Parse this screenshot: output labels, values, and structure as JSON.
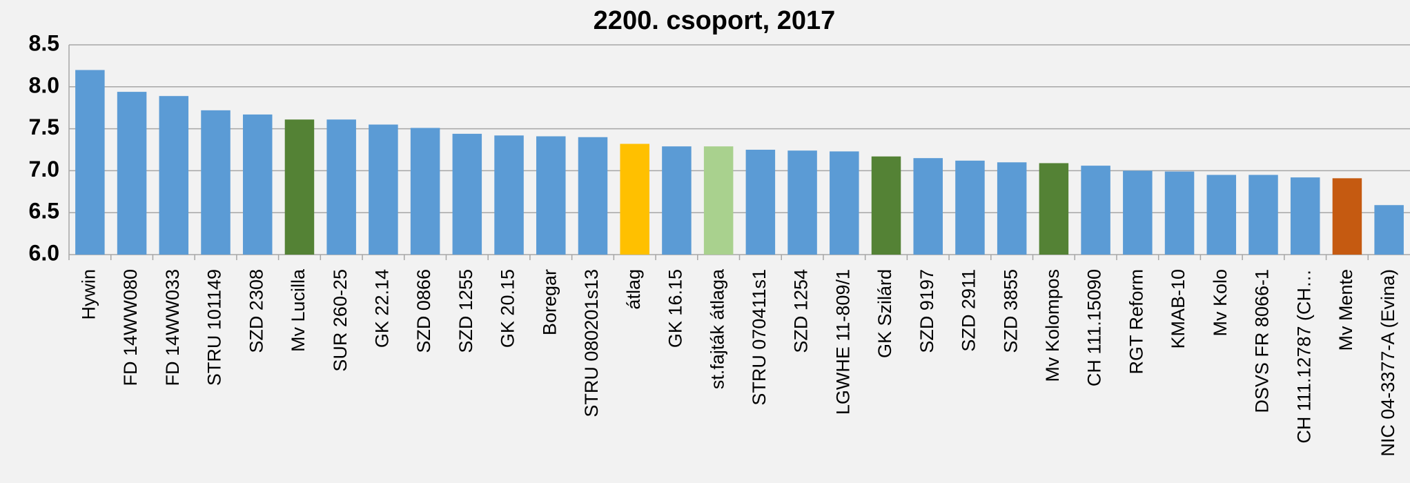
{
  "chart_data": {
    "type": "bar",
    "title": "2200. csoport, 2017",
    "categories": [
      "Hywin",
      "FD 14WW080",
      "FD 14WW033",
      "STRU 101149",
      "SZD 2308",
      "Mv Lucilla",
      "SUR 260-25",
      "GK 22.14",
      "SZD 0866",
      "SZD 1255",
      "GK 20.15",
      "Boregar",
      "STRU 080201s13",
      "átlag",
      "GK 16.15",
      "st.fajták átlaga",
      "STRU 070411s1",
      "SZD 1254",
      "LGWHE 11-809/1",
      "GK Szilárd",
      "SZD 9197",
      "SZD 2911",
      "SZD 3855",
      "Mv Kolompos",
      "CH 111.15090",
      "RGT Reform",
      "KMAB-10",
      "Mv Kolo",
      "DSVS FR 8066-1",
      "CH 111.12787 (CH…",
      "Mv Mente",
      "NIC 04-3377-A (Evina)"
    ],
    "values": [
      8.2,
      7.94,
      7.89,
      7.72,
      7.67,
      7.61,
      7.61,
      7.55,
      7.51,
      7.44,
      7.42,
      7.41,
      7.4,
      7.32,
      7.29,
      7.29,
      7.25,
      7.24,
      7.23,
      7.17,
      7.15,
      7.12,
      7.1,
      7.09,
      7.06,
      7.0,
      6.99,
      6.95,
      6.95,
      6.92,
      6.91,
      6.59
    ],
    "colors": [
      "#5b9bd5",
      "#5b9bd5",
      "#5b9bd5",
      "#5b9bd5",
      "#5b9bd5",
      "#548235",
      "#5b9bd5",
      "#5b9bd5",
      "#5b9bd5",
      "#5b9bd5",
      "#5b9bd5",
      "#5b9bd5",
      "#5b9bd5",
      "#ffc000",
      "#5b9bd5",
      "#a9d18e",
      "#5b9bd5",
      "#5b9bd5",
      "#5b9bd5",
      "#548235",
      "#5b9bd5",
      "#5b9bd5",
      "#5b9bd5",
      "#548235",
      "#5b9bd5",
      "#5b9bd5",
      "#5b9bd5",
      "#5b9bd5",
      "#5b9bd5",
      "#5b9bd5",
      "#c55a11",
      "#5b9bd5"
    ],
    "ylim": [
      6.0,
      8.5
    ],
    "yticks": [
      {
        "value": 6.0,
        "label": "6.0"
      },
      6.5,
      {
        "value": 7.0,
        "label": "7.0"
      },
      7.5,
      {
        "value": 8.0,
        "label": "8.0"
      },
      8.5
    ],
    "grid": true
  }
}
